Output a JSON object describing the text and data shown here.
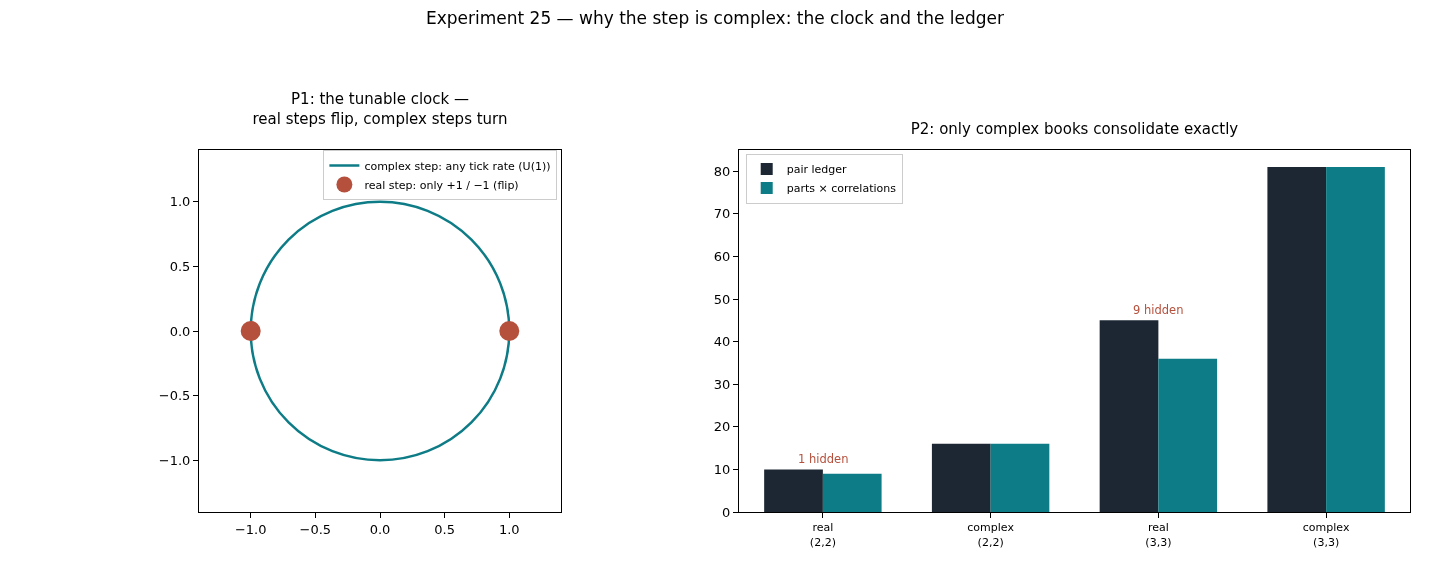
{
  "chart_data": [
    {
      "type": "line",
      "title": "P1: the tunable clock —\nreal steps flip, complex steps turn",
      "annotations": [
        "Experiment 25 — why the step is complex: the clock and the ledger"
      ],
      "series": [
        {
          "name": "complex step: any tick rate (U(1))",
          "type": "line",
          "color": "#0e7c86",
          "line_style": "solid",
          "marker": "none"
        },
        {
          "name": "real step: only +1 / −1 (flip)",
          "type": "scatter",
          "color": "#b5503c",
          "marker": "circle",
          "x": [
            -1,
            1
          ],
          "values": [
            0,
            0
          ]
        }
      ],
      "xlim": [
        -1.4,
        1.4
      ],
      "ylim": [
        -1.4,
        1.4
      ],
      "xticks": [
        {
          "value": -1,
          "label": "−1.0"
        },
        {
          "value": -0.5,
          "label": "−0.5"
        },
        {
          "value": 0,
          "label": "0.0"
        },
        {
          "value": 0.5,
          "label": "0.5"
        },
        {
          "value": 1,
          "label": "1.0"
        }
      ],
      "yticks": [
        {
          "value": -1,
          "label": "−1.0"
        },
        {
          "value": -0.5,
          "label": "−0.5"
        },
        {
          "value": 0,
          "label": "0.0"
        },
        {
          "value": 0.5,
          "label": "0.5"
        },
        {
          "value": 1,
          "label": "1.0"
        }
      ],
      "grid": false,
      "legend": "top right"
    },
    {
      "type": "bar",
      "title": "P2: only complex books consolidate exactly",
      "categories": [
        "real\n(2,2)",
        "complex\n(2,2)",
        "real\n(3,3)",
        "complex\n(3,3)"
      ],
      "series": [
        {
          "name": "pair ledger",
          "color": "#1c2733",
          "values": [
            10,
            16,
            45,
            81
          ]
        },
        {
          "name": "parts × correlations",
          "color": "#0e7c86",
          "values": [
            9,
            16,
            36,
            81
          ]
        }
      ],
      "annotations": [
        {
          "text": "1 hidden",
          "x": "real\n(2,2)",
          "y": 10
        },
        {
          "text": "9 hidden",
          "x": "real\n(3,3)",
          "y": 45
        }
      ],
      "ylim": [
        0,
        85
      ],
      "yticks": [
        0,
        10,
        20,
        30,
        40,
        50,
        60,
        70,
        80
      ],
      "grid": false,
      "legend": "top left"
    }
  ]
}
